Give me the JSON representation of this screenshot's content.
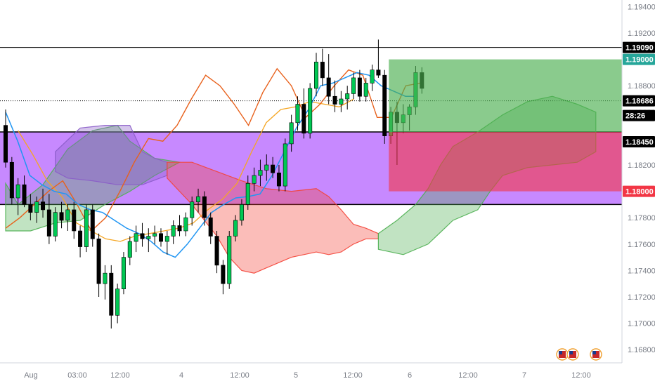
{
  "chart_data": {
    "type": "candlestick",
    "ylim": [
      1.167,
      1.1945
    ],
    "y_ticks": [
      "1.19400",
      "1.19200",
      "1.18800",
      "1.18600",
      "1.18200",
      "1.17800",
      "1.17600",
      "1.17400",
      "1.17200",
      "1.17000",
      "1.16800"
    ],
    "x_ticks": [
      "Aug",
      "03:00",
      "12:00",
      "4",
      "12:00",
      "5",
      "12:00",
      "6",
      "12:00",
      "7",
      "12:00"
    ],
    "price_labels": [
      {
        "text": "1.19090",
        "bg": "#000000",
        "fg": "#ffffff"
      },
      {
        "text": "1.19000",
        "bg": "#26a69a",
        "fg": "#ffffff"
      },
      {
        "text": "1.18686",
        "bg": "#000000",
        "fg": "#ffffff"
      },
      {
        "text": "28:26",
        "bg": "#000000",
        "fg": "#ffffff"
      },
      {
        "text": "1.18450",
        "bg": "#000000",
        "fg": "#ffffff"
      },
      {
        "text": "1.18000",
        "bg": "#f23645",
        "fg": "#ffffff"
      }
    ],
    "horizontal_levels": [
      {
        "price": 1.1909,
        "style": "solid",
        "color": "#000000"
      },
      {
        "price": 1.18686,
        "style": "dotted",
        "color": "#000000"
      }
    ],
    "zone": {
      "top": 1.1845,
      "bottom": 1.179,
      "color": "#b15cff"
    },
    "position": {
      "entry": 1.1845,
      "target": 1.19,
      "stop": 1.18,
      "profit_color": "#4caf50",
      "loss_color": "#f23645"
    },
    "colors": {
      "bull": "#00c853",
      "bear": "#000000",
      "kijun": "#e8611c",
      "tenkan": "#2196f3",
      "chikou": "#f5a623",
      "cloud_bull": "#4caf50",
      "cloud_bear": "#f44336"
    },
    "candles": [
      [
        1.185,
        1.1862,
        1.1818,
        1.1822
      ],
      [
        1.1822,
        1.1826,
        1.179,
        1.1795
      ],
      [
        1.1795,
        1.181,
        1.1782,
        1.1805
      ],
      [
        1.1805,
        1.1812,
        1.1788,
        1.179
      ],
      [
        1.179,
        1.1798,
        1.1778,
        1.1784
      ],
      [
        1.1784,
        1.1796,
        1.1776,
        1.1792
      ],
      [
        1.1792,
        1.1802,
        1.178,
        1.1786
      ],
      [
        1.1786,
        1.1798,
        1.176,
        1.1766
      ],
      [
        1.1766,
        1.1788,
        1.1762,
        1.1784
      ],
      [
        1.1784,
        1.1792,
        1.1772,
        1.1778
      ],
      [
        1.1778,
        1.179,
        1.177,
        1.1786
      ],
      [
        1.1786,
        1.1792,
        1.1764,
        1.177
      ],
      [
        1.177,
        1.1774,
        1.175,
        1.1758
      ],
      [
        1.1758,
        1.179,
        1.1754,
        1.1786
      ],
      [
        1.1786,
        1.179,
        1.1758,
        1.1764
      ],
      [
        1.1764,
        1.1768,
        1.172,
        1.173
      ],
      [
        1.173,
        1.1744,
        1.1718,
        1.1738
      ],
      [
        1.1738,
        1.1744,
        1.1696,
        1.1706
      ],
      [
        1.1706,
        1.173,
        1.17,
        1.1726
      ],
      [
        1.1726,
        1.1754,
        1.1722,
        1.175
      ],
      [
        1.175,
        1.1766,
        1.1744,
        1.1762
      ],
      [
        1.1762,
        1.1774,
        1.1754,
        1.1768
      ],
      [
        1.1768,
        1.1776,
        1.1758,
        1.1764
      ],
      [
        1.1764,
        1.1772,
        1.1754,
        1.1766
      ],
      [
        1.1766,
        1.1774,
        1.176,
        1.1768
      ],
      [
        1.1768,
        1.1772,
        1.1758,
        1.1762
      ],
      [
        1.1762,
        1.177,
        1.1752,
        1.1766
      ],
      [
        1.1766,
        1.1778,
        1.176,
        1.1774
      ],
      [
        1.1774,
        1.1782,
        1.1766,
        1.177
      ],
      [
        1.177,
        1.1784,
        1.1766,
        1.178
      ],
      [
        1.178,
        1.1796,
        1.1774,
        1.1792
      ],
      [
        1.1792,
        1.1802,
        1.1784,
        1.1796
      ],
      [
        1.1796,
        1.18,
        1.1774,
        1.178
      ],
      [
        1.178,
        1.1784,
        1.176,
        1.1766
      ],
      [
        1.1766,
        1.177,
        1.1738,
        1.1744
      ],
      [
        1.1744,
        1.1748,
        1.1722,
        1.173
      ],
      [
        1.173,
        1.177,
        1.1726,
        1.1766
      ],
      [
        1.1766,
        1.1782,
        1.1762,
        1.1778
      ],
      [
        1.1778,
        1.1794,
        1.1774,
        1.179
      ],
      [
        1.179,
        1.1812,
        1.1786,
        1.1806
      ],
      [
        1.1806,
        1.1818,
        1.18,
        1.1812
      ],
      [
        1.1812,
        1.1824,
        1.1804,
        1.1816
      ],
      [
        1.1816,
        1.1828,
        1.1808,
        1.182
      ],
      [
        1.182,
        1.1826,
        1.181,
        1.1814
      ],
      [
        1.1814,
        1.182,
        1.18,
        1.1804
      ],
      [
        1.1804,
        1.184,
        1.18,
        1.1836
      ],
      [
        1.1836,
        1.1858,
        1.183,
        1.1852
      ],
      [
        1.1852,
        1.1872,
        1.1846,
        1.1866
      ],
      [
        1.1866,
        1.1878,
        1.184,
        1.1844
      ],
      [
        1.1844,
        1.1882,
        1.184,
        1.1878
      ],
      [
        1.1878,
        1.1905,
        1.1872,
        1.1898
      ],
      [
        1.1898,
        1.1908,
        1.188,
        1.1886
      ],
      [
        1.1886,
        1.1904,
        1.1866,
        1.1872
      ],
      [
        1.1872,
        1.1884,
        1.186,
        1.1866
      ],
      [
        1.1866,
        1.1876,
        1.186,
        1.187
      ],
      [
        1.187,
        1.188,
        1.1862,
        1.1874
      ],
      [
        1.1874,
        1.189,
        1.187,
        1.1886
      ],
      [
        1.1886,
        1.1892,
        1.1868,
        1.1872
      ],
      [
        1.1872,
        1.1886,
        1.1868,
        1.1882
      ],
      [
        1.1882,
        1.1896,
        1.1876,
        1.1892
      ],
      [
        1.1892,
        1.1915,
        1.1886,
        1.1888
      ],
      [
        1.1888,
        1.1892,
        1.1836,
        1.1842
      ],
      [
        1.1842,
        1.1864,
        1.1836,
        1.186
      ],
      [
        1.186,
        1.1868,
        1.182,
        1.1852
      ],
      [
        1.1852,
        1.1866,
        1.1844,
        1.1858
      ],
      [
        1.1858,
        1.1866,
        1.1846,
        1.1864
      ],
      [
        1.1864,
        1.1895,
        1.1858,
        1.189
      ],
      [
        1.189,
        1.1894,
        1.1874,
        1.1878
      ]
    ],
    "tenkan": [
      1.186,
      1.1838,
      1.1812,
      1.1805,
      1.18,
      1.1798,
      1.179,
      1.1786,
      1.1784,
      1.1778,
      1.1772,
      1.1768,
      1.1762,
      1.1754,
      1.175,
      1.176,
      1.1772,
      1.1784,
      1.179,
      1.1795,
      1.1796,
      1.1798,
      1.1812,
      1.183,
      1.1848,
      1.1862,
      1.188,
      1.1882,
      1.1886,
      1.189,
      1.1888,
      1.188,
      1.1876,
      1.1872,
      1.1872
    ],
    "kijun": [
      1.1772,
      1.178,
      1.179,
      1.18,
      1.1808,
      1.179,
      1.177,
      1.178,
      1.18,
      1.1822,
      1.184,
      1.1838,
      1.185,
      1.187,
      1.1888,
      1.188,
      1.1866,
      1.185,
      1.1875,
      1.1893,
      1.188,
      1.1856,
      1.1866,
      1.188,
      1.1892,
      1.1888,
      1.1856,
      1.1856,
      1.188,
      1.1882
    ],
    "chikou": [
      1.1846,
      1.1828,
      1.1808,
      1.1796,
      1.1776,
      1.177,
      1.1764,
      1.1762,
      1.1766,
      1.1768,
      1.177,
      1.1772,
      1.1776,
      1.1786,
      1.1794,
      1.1806,
      1.183,
      1.1852,
      1.1862,
      1.1864,
      1.1868,
      1.1866,
      1.1864,
      1.187
    ]
  }
}
